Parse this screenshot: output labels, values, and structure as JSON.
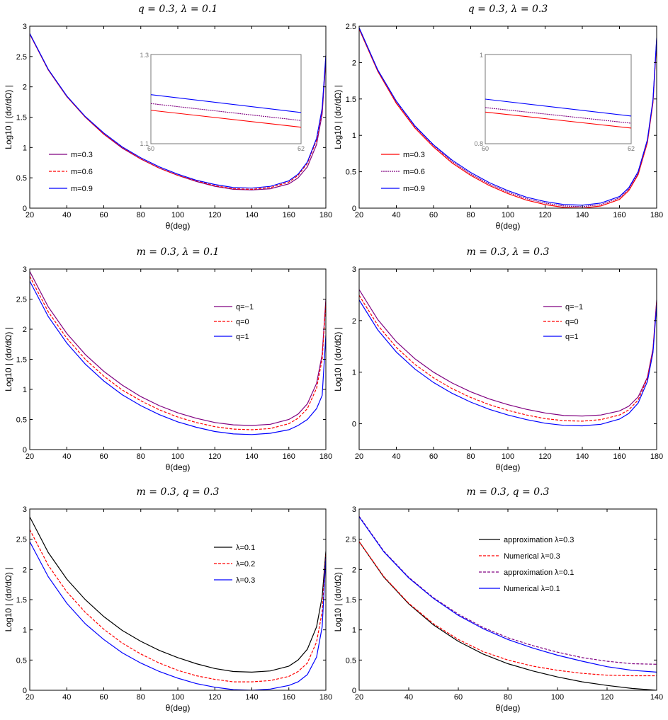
{
  "chart_data": [
    {
      "type": "line",
      "title": "q = 0.3, λ = 0.1",
      "xlabel": "θ(deg)",
      "ylabel": "Log10 | (dσ/dΩ) |",
      "xlim": [
        20,
        180
      ],
      "ylim": [
        0,
        3
      ],
      "xticks": [
        "20",
        "40",
        "60",
        "80",
        "100",
        "120",
        "140",
        "160",
        "180"
      ],
      "yticks": [
        "0",
        "0.5",
        "1",
        "1.5",
        "2",
        "2.5",
        "3"
      ],
      "legend_position": "left",
      "series": [
        {
          "name": "m=0.3",
          "color": "#800080",
          "dash": "solid",
          "x": [
            20,
            30,
            40,
            50,
            60,
            70,
            80,
            90,
            100,
            110,
            120,
            130,
            140,
            150,
            160,
            165,
            170,
            175,
            178,
            180
          ],
          "y": [
            2.87,
            2.28,
            1.84,
            1.5,
            1.22,
            0.99,
            0.81,
            0.66,
            0.54,
            0.44,
            0.36,
            0.31,
            0.3,
            0.32,
            0.4,
            0.5,
            0.68,
            1.05,
            1.55,
            2.45
          ]
        },
        {
          "name": "m=0.6",
          "color": "#ff0000",
          "dash": "4,2",
          "x": [
            20,
            30,
            40,
            50,
            60,
            70,
            80,
            90,
            100,
            110,
            120,
            130,
            140,
            150,
            160,
            165,
            170,
            175,
            178,
            180
          ],
          "y": [
            2.87,
            2.28,
            1.84,
            1.5,
            1.22,
            1.0,
            0.81,
            0.66,
            0.54,
            0.45,
            0.37,
            0.32,
            0.31,
            0.34,
            0.43,
            0.54,
            0.74,
            1.12,
            1.62,
            2.5
          ]
        },
        {
          "name": "m=0.9",
          "color": "#0000ff",
          "dash": "solid",
          "x": [
            20,
            30,
            40,
            50,
            60,
            70,
            80,
            90,
            100,
            110,
            120,
            130,
            140,
            150,
            160,
            165,
            170,
            175,
            178,
            180
          ],
          "y": [
            2.88,
            2.29,
            1.85,
            1.51,
            1.24,
            1.01,
            0.83,
            0.68,
            0.56,
            0.46,
            0.39,
            0.34,
            0.33,
            0.36,
            0.45,
            0.56,
            0.76,
            1.15,
            1.65,
            2.52
          ]
        }
      ],
      "inset": {
        "xlim": [
          60,
          62
        ],
        "ylim": [
          1.1,
          1.3
        ],
        "xticks": [
          "60",
          "62"
        ],
        "yticks": [
          "1.1",
          "1.3"
        ],
        "series": [
          {
            "color": "#800080",
            "dash": "2,1",
            "y0": 1.19,
            "y1": 1.152
          },
          {
            "color": "#ff0000",
            "dash": "solid",
            "y0": 1.175,
            "y1": 1.137
          },
          {
            "color": "#0000ff",
            "dash": "solid",
            "y0": 1.21,
            "y1": 1.17
          }
        ]
      }
    },
    {
      "type": "line",
      "title": "q = 0.3, λ = 0.3",
      "xlabel": "θ(deg)",
      "ylabel": "Log10 | (dσ/dΩ) |",
      "xlim": [
        20,
        180
      ],
      "ylim": [
        0,
        2.5
      ],
      "xticks": [
        "20",
        "40",
        "60",
        "80",
        "100",
        "120",
        "140",
        "160",
        "180"
      ],
      "yticks": [
        "0",
        "0.5",
        "1",
        "1.5",
        "2",
        "2.5"
      ],
      "legend_position": "left",
      "series": [
        {
          "name": "m=0.3",
          "color": "#ff0000",
          "dash": "solid",
          "x": [
            20,
            30,
            40,
            50,
            60,
            70,
            80,
            90,
            100,
            110,
            120,
            130,
            140,
            150,
            160,
            165,
            170,
            175,
            178,
            180
          ],
          "y": [
            2.46,
            1.88,
            1.44,
            1.1,
            0.84,
            0.62,
            0.45,
            0.31,
            0.2,
            0.11,
            0.05,
            0.01,
            0.0,
            0.03,
            0.12,
            0.24,
            0.46,
            0.9,
            1.45,
            2.3
          ]
        },
        {
          "name": "m=0.6",
          "color": "#800080",
          "dash": "2,1",
          "x": [
            20,
            30,
            40,
            50,
            60,
            70,
            80,
            90,
            100,
            110,
            120,
            130,
            140,
            150,
            160,
            165,
            170,
            175,
            178,
            180
          ],
          "y": [
            2.47,
            1.89,
            1.46,
            1.12,
            0.86,
            0.64,
            0.47,
            0.33,
            0.22,
            0.13,
            0.07,
            0.03,
            0.02,
            0.05,
            0.14,
            0.26,
            0.48,
            0.92,
            1.47,
            2.32
          ]
        },
        {
          "name": "m=0.9",
          "color": "#0000ff",
          "dash": "solid",
          "x": [
            20,
            30,
            40,
            50,
            60,
            70,
            80,
            90,
            100,
            110,
            120,
            130,
            140,
            150,
            160,
            165,
            170,
            175,
            178,
            180
          ],
          "y": [
            2.48,
            1.9,
            1.47,
            1.13,
            0.87,
            0.66,
            0.49,
            0.35,
            0.24,
            0.15,
            0.09,
            0.05,
            0.04,
            0.07,
            0.16,
            0.28,
            0.5,
            0.94,
            1.49,
            2.34
          ]
        }
      ],
      "inset": {
        "xlim": [
          60,
          62
        ],
        "ylim": [
          0.8,
          1
        ],
        "xticks": [
          "60",
          "62"
        ],
        "yticks": [
          "0.8",
          "1"
        ],
        "series": [
          {
            "color": "#ff0000",
            "dash": "solid",
            "y0": 0.871,
            "y1": 0.835
          },
          {
            "color": "#800080",
            "dash": "2,1",
            "y0": 0.881,
            "y1": 0.846
          },
          {
            "color": "#0000ff",
            "dash": "solid",
            "y0": 0.9,
            "y1": 0.862
          }
        ]
      }
    },
    {
      "type": "line",
      "title": "m = 0.3, λ = 0.1",
      "xlabel": "θ(deg)",
      "ylabel": "Log10 | (dσ/dΩ) |",
      "xlim": [
        20,
        180
      ],
      "ylim": [
        0,
        3
      ],
      "xticks": [
        "20",
        "40",
        "60",
        "80",
        "100",
        "120",
        "140",
        "160",
        "180"
      ],
      "yticks": [
        "0",
        "0.5",
        "1",
        "1.5",
        "2",
        "2.5",
        "3"
      ],
      "legend_position": "top-right",
      "series": [
        {
          "name": "q=−1",
          "color": "#800080",
          "dash": "solid",
          "x": [
            20,
            30,
            40,
            50,
            60,
            70,
            80,
            90,
            100,
            110,
            120,
            130,
            140,
            150,
            160,
            165,
            170,
            175,
            178,
            180
          ],
          "y": [
            2.96,
            2.37,
            1.93,
            1.58,
            1.3,
            1.07,
            0.88,
            0.73,
            0.61,
            0.52,
            0.45,
            0.41,
            0.4,
            0.42,
            0.5,
            0.59,
            0.76,
            1.1,
            1.58,
            2.5
          ]
        },
        {
          "name": "q=0",
          "color": "#ff0000",
          "dash": "4,2",
          "x": [
            20,
            30,
            40,
            50,
            60,
            70,
            80,
            90,
            100,
            110,
            120,
            130,
            140,
            150,
            160,
            165,
            170,
            175,
            178,
            180
          ],
          "y": [
            2.88,
            2.29,
            1.85,
            1.5,
            1.22,
            0.99,
            0.81,
            0.66,
            0.54,
            0.45,
            0.38,
            0.34,
            0.33,
            0.35,
            0.43,
            0.52,
            0.68,
            1.02,
            1.5,
            2.45
          ]
        },
        {
          "name": "q=1",
          "color": "#0000ff",
          "dash": "solid",
          "x": [
            20,
            30,
            40,
            50,
            60,
            70,
            80,
            90,
            100,
            110,
            120,
            130,
            140,
            150,
            160,
            165,
            170,
            175,
            178,
            180
          ],
          "y": [
            2.8,
            2.21,
            1.77,
            1.42,
            1.14,
            0.91,
            0.73,
            0.58,
            0.46,
            0.37,
            0.3,
            0.26,
            0.25,
            0.27,
            0.33,
            0.4,
            0.5,
            0.68,
            0.9,
            1.9
          ]
        }
      ]
    },
    {
      "type": "line",
      "title": "m = 0.3, λ = 0.3",
      "xlabel": "θ(deg)",
      "ylabel": "Log10 | (dσ/dΩ) |",
      "xlim": [
        20,
        180
      ],
      "ylim": [
        -0.5,
        3
      ],
      "xticks": [
        "20",
        "40",
        "60",
        "80",
        "100",
        "120",
        "140",
        "160",
        "180"
      ],
      "yticks": [
        "0",
        "1",
        "2",
        "3"
      ],
      "legend_position": "top-right",
      "series": [
        {
          "name": "q=−1",
          "color": "#800080",
          "dash": "solid",
          "x": [
            20,
            30,
            40,
            50,
            60,
            70,
            80,
            90,
            100,
            110,
            120,
            130,
            140,
            150,
            160,
            165,
            170,
            175,
            178,
            180
          ],
          "y": [
            2.6,
            2.02,
            1.59,
            1.26,
            1.0,
            0.79,
            0.62,
            0.48,
            0.37,
            0.28,
            0.21,
            0.16,
            0.15,
            0.17,
            0.25,
            0.34,
            0.52,
            0.9,
            1.45,
            2.4
          ]
        },
        {
          "name": "q=0",
          "color": "#ff0000",
          "dash": "4,2",
          "x": [
            20,
            30,
            40,
            50,
            60,
            70,
            80,
            90,
            100,
            110,
            120,
            130,
            140,
            150,
            160,
            165,
            170,
            175,
            178,
            180
          ],
          "y": [
            2.49,
            1.91,
            1.48,
            1.15,
            0.89,
            0.68,
            0.51,
            0.37,
            0.26,
            0.17,
            0.1,
            0.06,
            0.05,
            0.08,
            0.17,
            0.27,
            0.46,
            0.88,
            1.42,
            2.35
          ]
        },
        {
          "name": "q=1",
          "color": "#0000ff",
          "dash": "solid",
          "x": [
            20,
            30,
            40,
            50,
            60,
            70,
            80,
            90,
            100,
            110,
            120,
            130,
            140,
            150,
            160,
            165,
            170,
            175,
            178,
            180
          ],
          "y": [
            2.4,
            1.82,
            1.39,
            1.06,
            0.8,
            0.59,
            0.42,
            0.28,
            0.17,
            0.08,
            0.01,
            -0.03,
            -0.04,
            -0.01,
            0.09,
            0.2,
            0.4,
            0.82,
            1.38,
            2.3
          ]
        }
      ]
    },
    {
      "type": "line",
      "title": "m = 0.3, q = 0.3",
      "xlabel": "θ(deg)",
      "ylabel": "Log10 | (dσ/dΩ) |",
      "xlim": [
        20,
        180
      ],
      "ylim": [
        0,
        3
      ],
      "xticks": [
        "20",
        "40",
        "60",
        "80",
        "100",
        "120",
        "140",
        "160",
        "180"
      ],
      "yticks": [
        "0",
        "0.5",
        "1",
        "1.5",
        "2",
        "2.5",
        "3"
      ],
      "legend_position": "top-right",
      "series": [
        {
          "name": "λ=0.1",
          "color": "#000000",
          "dash": "solid",
          "x": [
            20,
            30,
            40,
            50,
            60,
            70,
            80,
            90,
            100,
            110,
            120,
            130,
            140,
            150,
            160,
            165,
            170,
            175,
            178,
            180
          ],
          "y": [
            2.87,
            2.28,
            1.84,
            1.5,
            1.22,
            0.99,
            0.81,
            0.66,
            0.54,
            0.44,
            0.36,
            0.31,
            0.3,
            0.32,
            0.4,
            0.5,
            0.68,
            1.05,
            1.55,
            2.3
          ]
        },
        {
          "name": "λ=0.2",
          "color": "#ff0000",
          "dash": "4,2",
          "x": [
            20,
            30,
            40,
            50,
            60,
            70,
            80,
            90,
            100,
            110,
            120,
            130,
            140,
            150,
            160,
            165,
            170,
            175,
            178,
            180
          ],
          "y": [
            2.66,
            2.07,
            1.63,
            1.29,
            1.01,
            0.78,
            0.6,
            0.45,
            0.33,
            0.24,
            0.18,
            0.14,
            0.14,
            0.16,
            0.23,
            0.31,
            0.45,
            0.8,
            1.3,
            2.25
          ]
        },
        {
          "name": "λ=0.3",
          "color": "#0000ff",
          "dash": "solid",
          "x": [
            20,
            30,
            40,
            50,
            60,
            70,
            80,
            90,
            100,
            110,
            120,
            130,
            140,
            150,
            160,
            165,
            170,
            175,
            178,
            180
          ],
          "y": [
            2.46,
            1.88,
            1.44,
            1.1,
            0.84,
            0.62,
            0.45,
            0.31,
            0.2,
            0.11,
            0.05,
            0.01,
            0.0,
            0.02,
            0.08,
            0.14,
            0.26,
            0.55,
            1.05,
            2.2
          ]
        }
      ]
    },
    {
      "type": "line",
      "title": "m = 0.3, q = 0.3",
      "xlabel": "θ(deg)",
      "ylabel": "Log10 | (dσ/dΩ) |",
      "xlim": [
        20,
        140
      ],
      "ylim": [
        0,
        3
      ],
      "xticks": [
        "20",
        "40",
        "60",
        "80",
        "100",
        "120",
        "140"
      ],
      "yticks": [
        "0",
        "0.5",
        "1",
        "1.5",
        "2",
        "2.5",
        "3"
      ],
      "legend_position": "top-right",
      "series": [
        {
          "name": "approximation λ=0.3",
          "color": "#000000",
          "dash": "solid",
          "x": [
            20,
            30,
            40,
            50,
            60,
            70,
            80,
            90,
            100,
            110,
            120,
            130,
            140
          ],
          "y": [
            2.46,
            1.87,
            1.43,
            1.08,
            0.81,
            0.6,
            0.44,
            0.32,
            0.22,
            0.14,
            0.08,
            0.03,
            0.0
          ]
        },
        {
          "name": "Numerical λ=0.3",
          "color": "#ff0000",
          "dash": "4,2",
          "x": [
            20,
            30,
            40,
            50,
            60,
            70,
            80,
            90,
            100,
            110,
            120,
            130,
            140
          ],
          "y": [
            2.46,
            1.88,
            1.44,
            1.1,
            0.84,
            0.64,
            0.5,
            0.4,
            0.33,
            0.28,
            0.25,
            0.24,
            0.24
          ]
        },
        {
          "name": "approximation λ=0.1",
          "color": "#800080",
          "dash": "4,2",
          "x": [
            20,
            30,
            40,
            50,
            60,
            70,
            80,
            90,
            100,
            110,
            120,
            130,
            140
          ],
          "y": [
            2.88,
            2.3,
            1.87,
            1.53,
            1.26,
            1.04,
            0.87,
            0.74,
            0.63,
            0.54,
            0.48,
            0.44,
            0.43
          ]
        },
        {
          "name": "Numerical λ=0.1",
          "color": "#0000ff",
          "dash": "solid",
          "x": [
            20,
            30,
            40,
            50,
            60,
            70,
            80,
            90,
            100,
            110,
            120,
            130,
            140
          ],
          "y": [
            2.87,
            2.29,
            1.86,
            1.52,
            1.24,
            1.02,
            0.84,
            0.7,
            0.58,
            0.48,
            0.39,
            0.33,
            0.3
          ]
        }
      ]
    }
  ]
}
